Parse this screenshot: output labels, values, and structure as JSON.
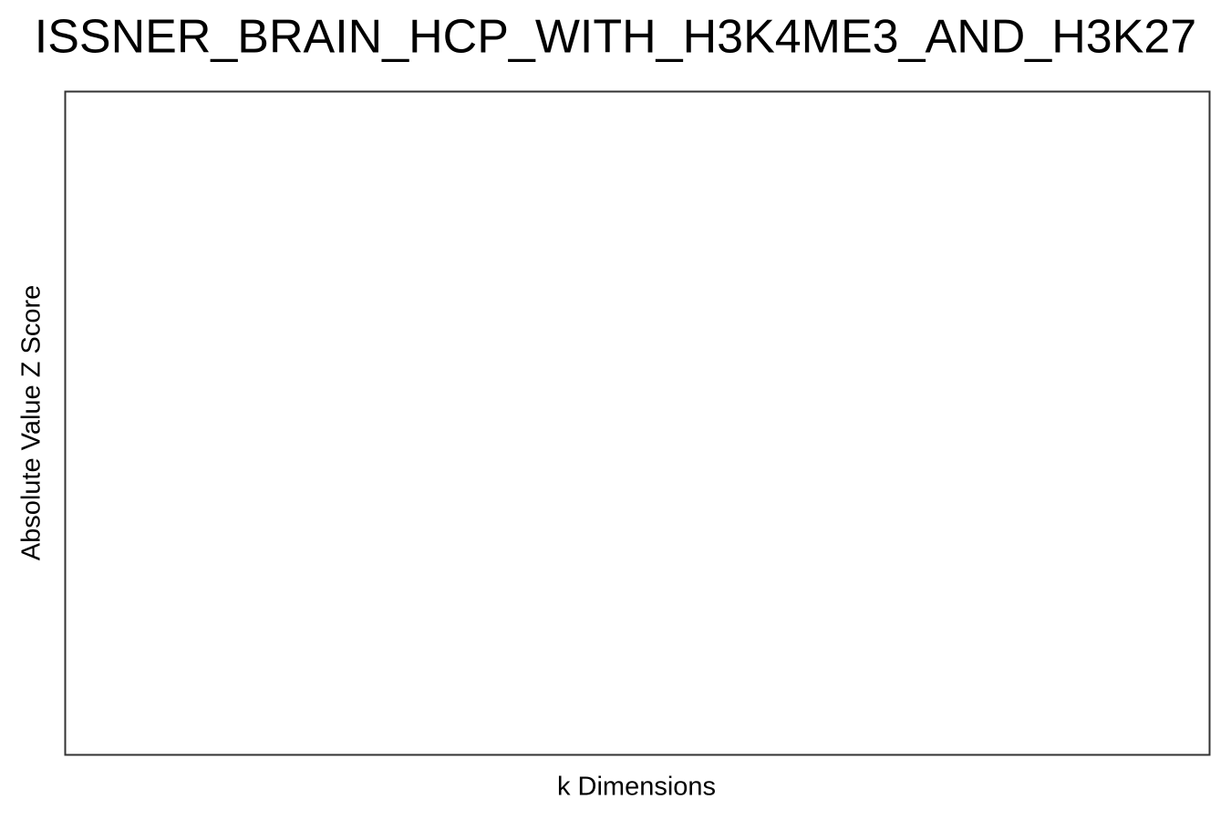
{
  "chart_data": {
    "type": "line",
    "title": "ISSNER_BRAIN_HCP_WITH_H3K4ME3_AND_H3K27",
    "x_label": "k Dimensions",
    "y_label": "Absolute Value Z Score",
    "series": []
  }
}
